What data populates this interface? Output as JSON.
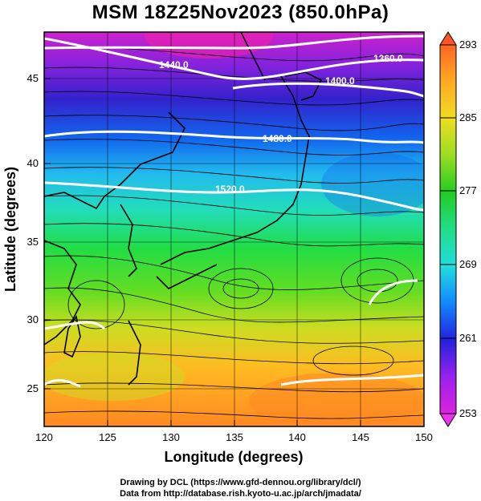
{
  "title": "MSM 18Z25Nov2023 (850.0hPa)",
  "map": {
    "xlabel": "Longitude (degrees)",
    "ylabel": "Latitude  (degrees)",
    "x_ticks": [
      "120",
      "125",
      "130",
      "135",
      "140",
      "145",
      "150"
    ],
    "y_ticks": [
      "25",
      "30",
      "35",
      "40",
      "45"
    ],
    "lon_range": [
      120,
      150
    ],
    "lat_range": [
      22.4,
      47.6
    ],
    "contour_labels": [
      "1360.0",
      "1400.0",
      "1440.0",
      "1480.0",
      "1520.0"
    ],
    "shading": "temperature (K), purple cold north to orange warm south",
    "overlay": "wind streamlines (black)"
  },
  "colorbar": {
    "ticks": [
      "293",
      "285",
      "277",
      "269",
      "261",
      "253"
    ],
    "range": [
      253,
      293
    ],
    "colors": [
      "#dd22dd",
      "#9922ee",
      "#2222dd",
      "#1188ff",
      "#22dddd",
      "#22dd88",
      "#22cc22",
      "#99dd22",
      "#eedd22",
      "#ffaa22",
      "#ff6622"
    ]
  },
  "credits": {
    "line1": "Drawing by DCL (https://www.gfd-dennou.org/library/dcl/)",
    "line2": "Data from http://database.rish.kyoto-u.ac.jp/arch/jmadata/"
  }
}
